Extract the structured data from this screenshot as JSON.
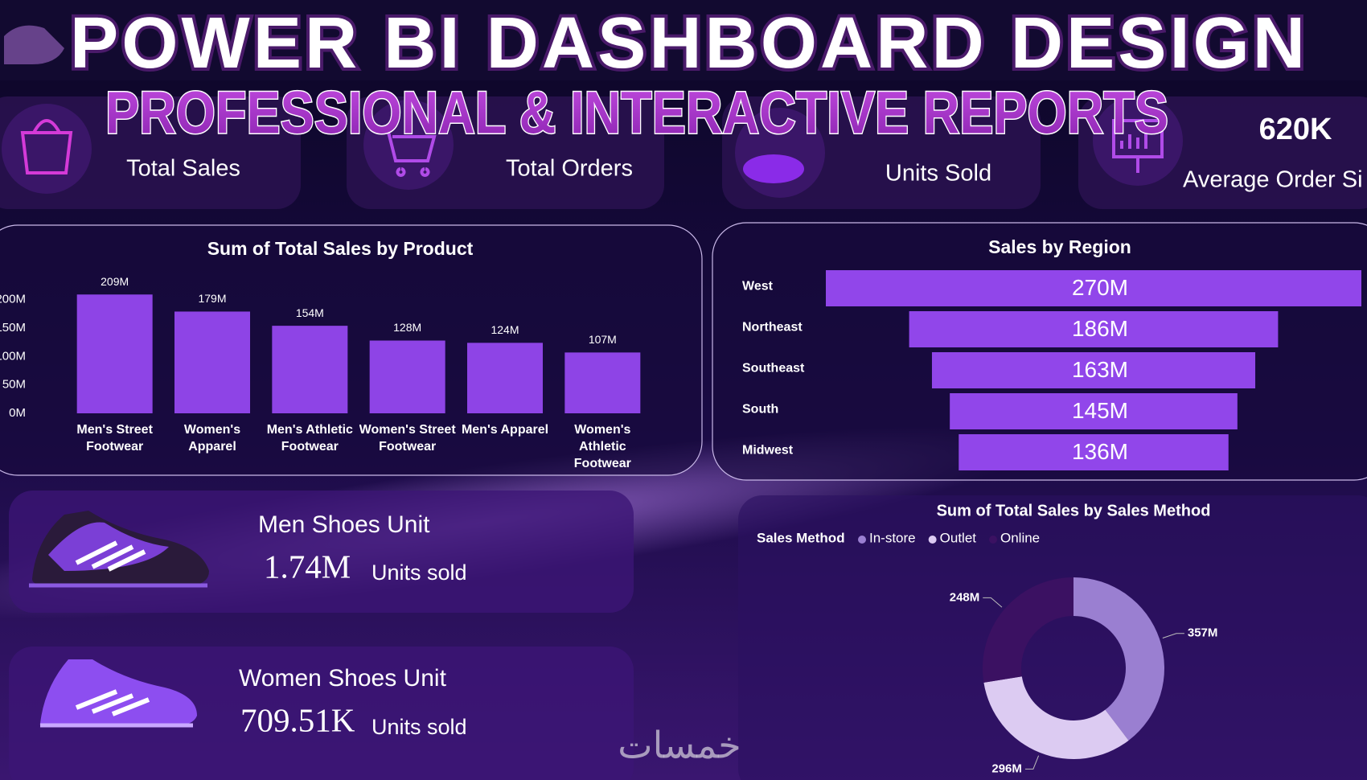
{
  "header": {
    "title": "POWER BI DASHBOARD DESIGN",
    "subtitle": "PROFESSIONAL & INTERACTIVE REPORTS"
  },
  "kpis": [
    {
      "label": "Total Sales"
    },
    {
      "label": "Total Orders"
    },
    {
      "label": "Units Sold"
    },
    {
      "value": "620K",
      "label": "Average Order Si"
    }
  ],
  "chart_data": [
    {
      "type": "bar",
      "title": "Sum of Total Sales by Product",
      "categories": [
        "Men's Street Footwear",
        "Women's Apparel",
        "Men's Athletic Footwear",
        "Women's Street Footwear",
        "Men's Apparel",
        "Women's Athletic Footwear"
      ],
      "values": [
        209,
        179,
        154,
        128,
        124,
        107
      ],
      "value_labels": [
        "209M",
        "179M",
        "154M",
        "128M",
        "124M",
        "107M"
      ],
      "color": "#8e44e6",
      "ylim": [
        0,
        215
      ],
      "yticks": [
        {
          "value": 0,
          "label": "0M"
        },
        {
          "value": 50,
          "label": "50M"
        },
        {
          "value": 100,
          "label": "100M"
        },
        {
          "value": 150,
          "label": "150M"
        },
        {
          "value": 200,
          "label": "200M"
        }
      ]
    },
    {
      "type": "funnel",
      "title": "Sales by Region",
      "categories": [
        "West",
        "Northeast",
        "Southeast",
        "South",
        "Midwest"
      ],
      "values": [
        270,
        186,
        163,
        145,
        136
      ],
      "value_labels": [
        "270M",
        "186M",
        "163M",
        "145M",
        "136M"
      ],
      "color": "#9146ea"
    },
    {
      "type": "pie",
      "donut": true,
      "title": "Sum of Total Sales by Sales Method",
      "legend_title": "Sales Method",
      "categories": [
        "In-store",
        "Outlet",
        "Online"
      ],
      "values": [
        357,
        296,
        248
      ],
      "value_labels": [
        "357M",
        "296M",
        "248M"
      ],
      "colors": [
        "#9a7fd1",
        "#dccbf2",
        "#3b1162"
      ]
    }
  ],
  "shoe_cards": [
    {
      "title": "Men Shoes Unit",
      "value": "1.74M",
      "unit": "Units sold"
    },
    {
      "title": "Women Shoes Unit",
      "value": "709.51K",
      "unit": "Units sold"
    }
  ],
  "watermark": "خمسات"
}
